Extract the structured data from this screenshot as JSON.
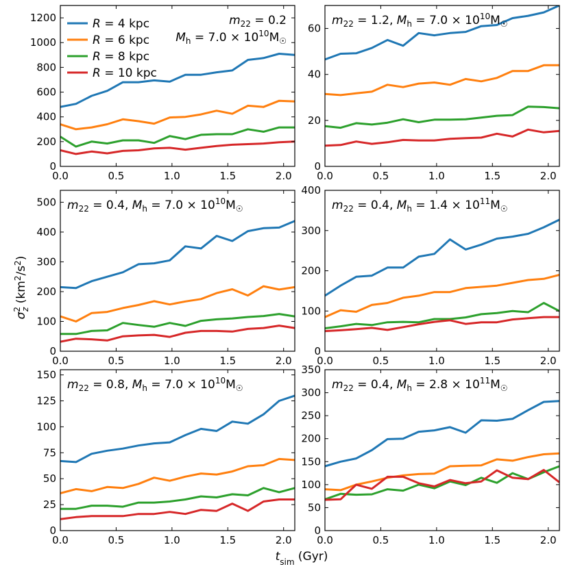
{
  "figure": {
    "xlabel": "t_sim (Gyr)",
    "ylabel": "σ_z² (km²/s²)"
  },
  "legend": {
    "position": "top-left of first panel",
    "entries": [
      {
        "label": "R = 4 kpc",
        "color": "#1f77b4"
      },
      {
        "label": "R = 6 kpc",
        "color": "#ff7f0e"
      },
      {
        "label": "R = 8 kpc",
        "color": "#2ca02c"
      },
      {
        "label": "R = 10 kpc",
        "color": "#d62728"
      }
    ]
  },
  "chart_data": [
    {
      "type": "line",
      "title": "m22 = 0.2, Mh = 7.0 × 10^10 M☉",
      "title_m22": "0.2",
      "title_mh_mant": "7.0",
      "title_mh_exp": "10",
      "xlabel": "t_sim (Gyr)",
      "ylabel": "σ_z² (km²/s²)",
      "xlim": [
        0,
        2.1
      ],
      "ylim": [
        0,
        1300
      ],
      "xticks": [
        "0.0",
        "0.5",
        "1.0",
        "1.5",
        "2.0"
      ],
      "yticks": [
        "0",
        "200",
        "400",
        "600",
        "800",
        "1000",
        "1200"
      ],
      "x": [
        0,
        0.14,
        0.28,
        0.42,
        0.56,
        0.7,
        0.84,
        0.98,
        1.12,
        1.26,
        1.4,
        1.54,
        1.68,
        1.82,
        1.96,
        2.1
      ],
      "series": [
        {
          "name": "R = 4 kpc",
          "color": "#1f77b4",
          "values": [
            480,
            505,
            570,
            610,
            680,
            680,
            695,
            685,
            740,
            740,
            760,
            775,
            860,
            875,
            910,
            900
          ]
        },
        {
          "name": "R = 6 kpc",
          "color": "#ff7f0e",
          "values": [
            340,
            300,
            315,
            340,
            380,
            365,
            345,
            395,
            400,
            420,
            450,
            425,
            490,
            480,
            530,
            525
          ]
        },
        {
          "name": "R = 8 kpc",
          "color": "#2ca02c",
          "values": [
            240,
            160,
            200,
            185,
            210,
            210,
            190,
            245,
            220,
            255,
            260,
            260,
            300,
            280,
            315,
            315
          ]
        },
        {
          "name": "R = 10 kpc",
          "color": "#d62728",
          "values": [
            130,
            100,
            120,
            105,
            125,
            130,
            145,
            150,
            135,
            150,
            165,
            175,
            180,
            185,
            195,
            200
          ]
        }
      ]
    },
    {
      "type": "line",
      "title": "m22 = 1.2, Mh = 7.0 × 10^10 M☉",
      "title_m22": "1.2",
      "title_mh_mant": "7.0",
      "title_mh_exp": "10",
      "xlabel": "t_sim (Gyr)",
      "ylabel": "σ_z² (km²/s²)",
      "xlim": [
        0,
        2.1
      ],
      "ylim": [
        0,
        70
      ],
      "xticks": [
        "0.0",
        "0.5",
        "1.0",
        "1.5",
        "2.0"
      ],
      "yticks": [
        "0",
        "20",
        "40",
        "60"
      ],
      "x": [
        0,
        0.14,
        0.28,
        0.42,
        0.56,
        0.7,
        0.84,
        0.98,
        1.12,
        1.26,
        1.4,
        1.54,
        1.68,
        1.82,
        1.96,
        2.1
      ],
      "series": [
        {
          "name": "R = 4 kpc",
          "color": "#1f77b4",
          "values": [
            46.5,
            49,
            49.2,
            51.5,
            55,
            52.5,
            58,
            57,
            58,
            58.5,
            61,
            61.5,
            64.5,
            65.5,
            67,
            70
          ]
        },
        {
          "name": "R = 6 kpc",
          "color": "#ff7f0e",
          "values": [
            31.5,
            31,
            31.8,
            32.5,
            35.5,
            34.5,
            36,
            36.5,
            35.5,
            38,
            37,
            38.5,
            41.5,
            41.5,
            44,
            44
          ]
        },
        {
          "name": "R = 8 kpc",
          "color": "#2ca02c",
          "values": [
            17.5,
            16.8,
            18.8,
            18.2,
            19,
            20.5,
            19.2,
            20.3,
            20.3,
            20.5,
            21.2,
            22,
            22.3,
            26,
            25.8,
            25.3
          ]
        },
        {
          "name": "R = 10 kpc",
          "color": "#d62728",
          "values": [
            9,
            9.3,
            10.8,
            9.8,
            10.5,
            11.5,
            11.3,
            11.3,
            12,
            12.3,
            12.5,
            14.2,
            13,
            16,
            14.8,
            15.4
          ]
        }
      ]
    },
    {
      "type": "line",
      "title": "m22 = 0.4, Mh = 7.0 × 10^10 M☉",
      "title_m22": "0.4",
      "title_mh_mant": "7.0",
      "title_mh_exp": "10",
      "xlabel": "t_sim (Gyr)",
      "ylabel": "σ_z² (km²/s²)",
      "xlim": [
        0,
        2.1
      ],
      "ylim": [
        0,
        540
      ],
      "xticks": [
        "0.0",
        "0.5",
        "1.0",
        "1.5",
        "2.0"
      ],
      "yticks": [
        "0",
        "100",
        "200",
        "300",
        "400",
        "500"
      ],
      "x": [
        0,
        0.14,
        0.28,
        0.42,
        0.56,
        0.7,
        0.84,
        0.98,
        1.12,
        1.26,
        1.4,
        1.54,
        1.68,
        1.82,
        1.96,
        2.1
      ],
      "series": [
        {
          "name": "R = 4 kpc",
          "color": "#1f77b4",
          "values": [
            215,
            212,
            235,
            250,
            265,
            292,
            295,
            305,
            352,
            345,
            387,
            370,
            403,
            413,
            415,
            437
          ]
        },
        {
          "name": "R = 6 kpc",
          "color": "#ff7f0e",
          "values": [
            117,
            100,
            128,
            132,
            145,
            155,
            168,
            157,
            167,
            175,
            195,
            208,
            187,
            218,
            207,
            215
          ]
        },
        {
          "name": "R = 8 kpc",
          "color": "#2ca02c",
          "values": [
            58,
            58,
            68,
            70,
            95,
            88,
            82,
            95,
            85,
            102,
            107,
            110,
            115,
            118,
            125,
            117
          ]
        },
        {
          "name": "R = 10 kpc",
          "color": "#d62728",
          "values": [
            32,
            42,
            40,
            36,
            50,
            53,
            55,
            48,
            62,
            68,
            68,
            66,
            75,
            78,
            86,
            78
          ]
        }
      ]
    },
    {
      "type": "line",
      "title": "m22 = 0.4, Mh = 1.4 × 10^11 M☉",
      "title_m22": "0.4",
      "title_mh_mant": "1.4",
      "title_mh_exp": "11",
      "xlabel": "t_sim (Gyr)",
      "ylabel": "σ_z² (km²/s²)",
      "xlim": [
        0,
        2.1
      ],
      "ylim": [
        0,
        400
      ],
      "xticks": [
        "0.0",
        "0.5",
        "1.0",
        "1.5",
        "2.0"
      ],
      "yticks": [
        "0",
        "100",
        "200",
        "300",
        "400"
      ],
      "x": [
        0,
        0.14,
        0.28,
        0.42,
        0.56,
        0.7,
        0.84,
        0.98,
        1.12,
        1.26,
        1.4,
        1.54,
        1.68,
        1.82,
        1.96,
        2.1
      ],
      "series": [
        {
          "name": "R = 4 kpc",
          "color": "#1f77b4",
          "values": [
            138,
            163,
            185,
            188,
            208,
            208,
            235,
            242,
            278,
            253,
            265,
            280,
            285,
            292,
            308,
            327
          ]
        },
        {
          "name": "R = 6 kpc",
          "color": "#ff7f0e",
          "values": [
            85,
            102,
            98,
            115,
            120,
            133,
            138,
            147,
            147,
            157,
            160,
            163,
            170,
            177,
            180,
            190
          ]
        },
        {
          "name": "R = 8 kpc",
          "color": "#2ca02c",
          "values": [
            57,
            62,
            68,
            65,
            72,
            73,
            72,
            80,
            80,
            84,
            92,
            95,
            100,
            97,
            120,
            100
          ]
        },
        {
          "name": "R = 10 kpc",
          "color": "#d62728",
          "values": [
            50,
            52,
            55,
            58,
            53,
            60,
            67,
            73,
            77,
            68,
            72,
            72,
            79,
            82,
            85,
            85
          ]
        }
      ]
    },
    {
      "type": "line",
      "title": "m22 = 0.8, Mh = 7.0 × 10^10 M☉",
      "title_m22": "0.8",
      "title_mh_mant": "7.0",
      "title_mh_exp": "10",
      "xlabel": "t_sim (Gyr)",
      "ylabel": "σ_z² (km²/s²)",
      "xlim": [
        0,
        2.1
      ],
      "ylim": [
        0,
        155
      ],
      "xticks": [
        "0.0",
        "0.5",
        "1.0",
        "1.5",
        "2.0"
      ],
      "yticks": [
        "0",
        "25",
        "50",
        "75",
        "100",
        "125",
        "150"
      ],
      "x": [
        0,
        0.14,
        0.28,
        0.42,
        0.56,
        0.7,
        0.84,
        0.98,
        1.12,
        1.26,
        1.4,
        1.54,
        1.68,
        1.82,
        1.96,
        2.1
      ],
      "series": [
        {
          "name": "R = 4 kpc",
          "color": "#1f77b4",
          "values": [
            67,
            66,
            74,
            77,
            79,
            82,
            84,
            85,
            92,
            98,
            96,
            105,
            103,
            112,
            125,
            130
          ]
        },
        {
          "name": "R = 6 kpc",
          "color": "#ff7f0e",
          "values": [
            36,
            40,
            38,
            42,
            41,
            45,
            51,
            48,
            52,
            55,
            54,
            57,
            62,
            63,
            69,
            68
          ]
        },
        {
          "name": "R = 8 kpc",
          "color": "#2ca02c",
          "values": [
            21,
            21,
            24,
            24,
            23,
            27,
            27,
            28,
            30,
            33,
            32,
            35,
            34,
            41,
            37,
            41
          ]
        },
        {
          "name": "R = 10 kpc",
          "color": "#d62728",
          "values": [
            11,
            13,
            14,
            14,
            14,
            16,
            16,
            18,
            16,
            20,
            19,
            26,
            19,
            28,
            30,
            30
          ]
        }
      ]
    },
    {
      "type": "line",
      "title": "m22 = 0.4, Mh = 2.8 × 10^11 M☉",
      "title_m22": "0.4",
      "title_mh_mant": "2.8",
      "title_mh_exp": "11",
      "xlabel": "t_sim (Gyr)",
      "ylabel": "σ_z² (km²/s²)",
      "xlim": [
        0,
        2.1
      ],
      "ylim": [
        0,
        350
      ],
      "xticks": [
        "0.0",
        "0.5",
        "1.0",
        "1.5",
        "2.0"
      ],
      "yticks": [
        "0",
        "50",
        "100",
        "150",
        "200",
        "250",
        "300",
        "350"
      ],
      "x": [
        0,
        0.14,
        0.28,
        0.42,
        0.56,
        0.7,
        0.84,
        0.98,
        1.12,
        1.26,
        1.4,
        1.54,
        1.68,
        1.82,
        1.96,
        2.1
      ],
      "series": [
        {
          "name": "R = 4 kpc",
          "color": "#1f77b4",
          "values": [
            140,
            150,
            157,
            175,
            199,
            200,
            215,
            218,
            225,
            213,
            240,
            239,
            243,
            262,
            280,
            282
          ]
        },
        {
          "name": "R = 6 kpc",
          "color": "#ff7f0e",
          "values": [
            90,
            88,
            100,
            107,
            115,
            120,
            123,
            124,
            140,
            141,
            142,
            155,
            152,
            160,
            166,
            168
          ]
        },
        {
          "name": "R = 8 kpc",
          "color": "#2ca02c",
          "values": [
            68,
            80,
            78,
            79,
            90,
            87,
            100,
            92,
            107,
            99,
            115,
            104,
            125,
            112,
            127,
            140
          ]
        },
        {
          "name": "R = 10 kpc",
          "color": "#d62728",
          "values": [
            67,
            68,
            100,
            91,
            117,
            117,
            103,
            96,
            110,
            103,
            107,
            131,
            115,
            112,
            132,
            105
          ]
        }
      ]
    }
  ]
}
